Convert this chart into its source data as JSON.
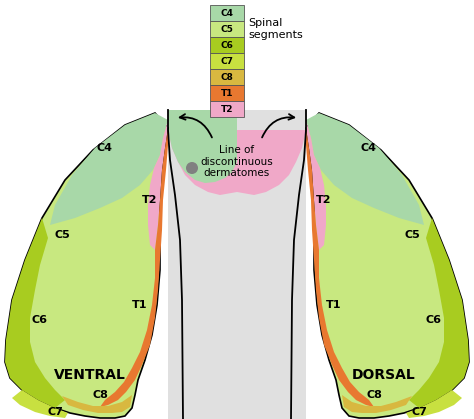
{
  "background_color": "#ffffff",
  "spinal_segments": [
    "C4",
    "C5",
    "C6",
    "C7",
    "C8",
    "T1",
    "T2"
  ],
  "spinal_colors": [
    "#a8d8a8",
    "#c8e880",
    "#a8cc20",
    "#c8e040",
    "#d8b840",
    "#e87830",
    "#f0a8c8"
  ],
  "labels": {
    "ventral": "VENTRAL",
    "dorsal": "DORSAL",
    "spinal": "Spinal\nsegments",
    "line_of": "Line of\ndiscontinuous\ndermatomes"
  },
  "fig_width": 4.74,
  "fig_height": 4.19,
  "dpi": 100
}
